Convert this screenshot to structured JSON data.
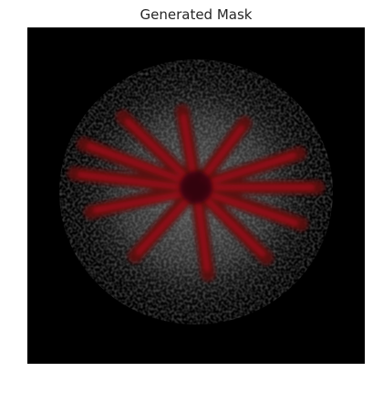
{
  "title": "Generated Mask"
}
